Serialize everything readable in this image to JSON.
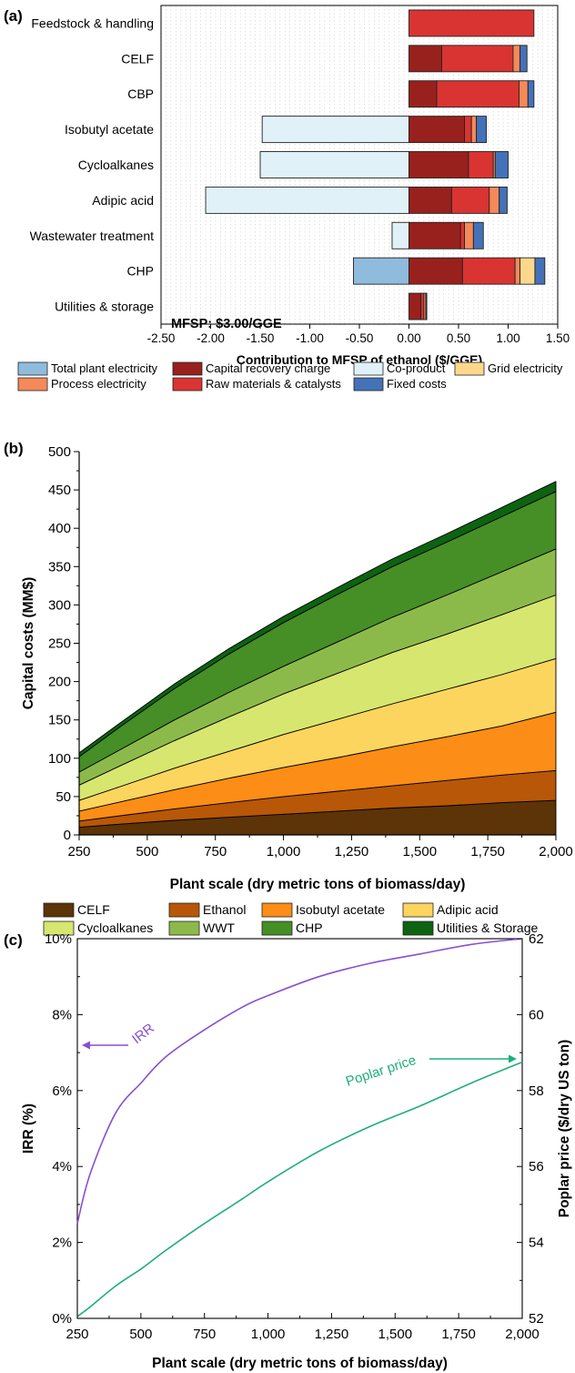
{
  "panel_a": {
    "label": "(a)",
    "annotation": "MFSP: $3.00/GGE",
    "legend": [
      {
        "name": "Total plant electricity",
        "color": "#8fbcdc"
      },
      {
        "name": "Capital recovery charge",
        "color": "#98211d"
      },
      {
        "name": "Co-product",
        "color": "#e0f1f8"
      },
      {
        "name": "Grid electricity",
        "color": "#fdd88c"
      },
      {
        "name": "Process electricity",
        "color": "#f5895a"
      },
      {
        "name": "Raw materials & catalysts",
        "color": "#d93431"
      },
      {
        "name": "Fixed costs",
        "color": "#4472b8"
      }
    ]
  },
  "panel_b": {
    "label": "(b)",
    "legend": [
      {
        "name": "CELF",
        "color": "#5c3407"
      },
      {
        "name": "Ethanol",
        "color": "#b85707"
      },
      {
        "name": "Isobutyl acetate",
        "color": "#fc8d16"
      },
      {
        "name": "Adipic acid",
        "color": "#fcd55e"
      },
      {
        "name": "Cycloalkanes",
        "color": "#d6e66f"
      },
      {
        "name": "WWT",
        "color": "#8cba4a"
      },
      {
        "name": "CHP",
        "color": "#468e26"
      },
      {
        "name": "Utilities & Storage",
        "color": "#0d6312"
      }
    ]
  },
  "panel_c": {
    "label": "(c)",
    "irr_annotation": "IRR",
    "poplar_annotation": "Poplar price"
  },
  "chart_data": [
    {
      "type": "bar",
      "orientation": "horizontal",
      "stacked": true,
      "xlabel": "Contribution to MFSP of ethanol ($/GGE)",
      "xlim": [
        -2.5,
        1.5
      ],
      "xticks": [
        "-2.50",
        "-2.00",
        "-1.50",
        "-1.00",
        "-0.50",
        "0.00",
        "0.50",
        "1.00",
        "1.50"
      ],
      "grid": true,
      "colors": {
        "Total plant electricity": "#8fbcdc",
        "Capital recovery charge": "#98211d",
        "Co-product": "#e0f1f8",
        "Grid electricity": "#fdd88c",
        "Process electricity": "#f5895a",
        "Raw materials & catalysts": "#d93431",
        "Fixed costs": "#4472b8"
      },
      "categories": [
        "Feedstock & handling",
        "CELF",
        "CBP",
        "Isobutyl acetate",
        "Cycloalkanes",
        "Adipic acid",
        "Wastewater treatment",
        "CHP",
        "Utilities & storage"
      ],
      "bars": [
        {
          "category": "Feedstock & handling",
          "segments": [
            {
              "name": "Raw materials & catalysts",
              "value": 1.26
            }
          ]
        },
        {
          "category": "CELF",
          "segments": [
            {
              "name": "Capital recovery charge",
              "value": 0.33
            },
            {
              "name": "Raw materials & catalysts",
              "value": 0.72
            },
            {
              "name": "Process electricity",
              "value": 0.07
            },
            {
              "name": "Fixed costs",
              "value": 0.07
            }
          ]
        },
        {
          "category": "CBP",
          "segments": [
            {
              "name": "Capital recovery charge",
              "value": 0.28
            },
            {
              "name": "Raw materials & catalysts",
              "value": 0.83
            },
            {
              "name": "Process electricity",
              "value": 0.09
            },
            {
              "name": "Fixed costs",
              "value": 0.06
            }
          ]
        },
        {
          "category": "Isobutyl acetate",
          "segments": [
            {
              "name": "Co-product",
              "value": -1.48
            },
            {
              "name": "Capital recovery charge",
              "value": 0.56
            },
            {
              "name": "Raw materials & catalysts",
              "value": 0.07
            },
            {
              "name": "Process electricity",
              "value": 0.05
            },
            {
              "name": "Fixed costs",
              "value": 0.1
            }
          ]
        },
        {
          "category": "Cycloalkanes",
          "segments": [
            {
              "name": "Co-product",
              "value": -1.5
            },
            {
              "name": "Capital recovery charge",
              "value": 0.6
            },
            {
              "name": "Raw materials & catalysts",
              "value": 0.25
            },
            {
              "name": "Process electricity",
              "value": 0.02
            },
            {
              "name": "Fixed costs",
              "value": 0.13
            }
          ]
        },
        {
          "category": "Adipic acid",
          "segments": [
            {
              "name": "Co-product",
              "value": -2.05
            },
            {
              "name": "Capital recovery charge",
              "value": 0.43
            },
            {
              "name": "Raw materials & catalysts",
              "value": 0.38
            },
            {
              "name": "Process electricity",
              "value": 0.1
            },
            {
              "name": "Fixed costs",
              "value": 0.08
            }
          ]
        },
        {
          "category": "Wastewater treatment",
          "segments": [
            {
              "name": "Co-product",
              "value": -0.17
            },
            {
              "name": "Capital recovery charge",
              "value": 0.52
            },
            {
              "name": "Raw materials & catalysts",
              "value": 0.04
            },
            {
              "name": "Process electricity",
              "value": 0.09
            },
            {
              "name": "Fixed costs",
              "value": 0.1
            }
          ]
        },
        {
          "category": "CHP",
          "segments": [
            {
              "name": "Total plant electricity",
              "value": -0.56
            },
            {
              "name": "Capital recovery charge",
              "value": 0.54
            },
            {
              "name": "Raw materials & catalysts",
              "value": 0.53
            },
            {
              "name": "Process electricity",
              "value": 0.05
            },
            {
              "name": "Grid electricity",
              "value": 0.15
            },
            {
              "name": "Fixed costs",
              "value": 0.1
            }
          ]
        },
        {
          "category": "Utilities & storage",
          "segments": [
            {
              "name": "Capital recovery charge",
              "value": 0.12
            },
            {
              "name": "Raw materials & catalysts",
              "value": 0.03
            },
            {
              "name": "Process electricity",
              "value": 0.02
            },
            {
              "name": "Fixed costs",
              "value": 0.01
            }
          ]
        }
      ]
    },
    {
      "type": "area",
      "stacked": true,
      "xlabel": "Plant scale (dry metric tons of biomass/day)",
      "ylabel": "Capital costs (MM$)",
      "xlim": [
        250,
        2000
      ],
      "ylim": [
        0,
        500
      ],
      "xticks": [
        "250",
        "500",
        "750",
        "1,000",
        "1,250",
        "1,500",
        "1,750",
        "2,000"
      ],
      "yticks": [
        "0",
        "50",
        "100",
        "150",
        "200",
        "250",
        "300",
        "350",
        "400",
        "450",
        "500"
      ],
      "x": [
        250,
        400,
        600,
        800,
        1000,
        1200,
        1400,
        1600,
        1800,
        2000
      ],
      "series": [
        {
          "name": "CELF",
          "color": "#5c3407",
          "values": [
            10,
            14,
            19,
            23,
            27,
            31,
            35,
            38,
            42,
            45
          ]
        },
        {
          "name": "Ethanol",
          "color": "#b85707",
          "values": [
            8,
            11,
            15,
            19,
            23,
            26,
            29,
            33,
            36,
            39
          ]
        },
        {
          "name": "Isobutyl acetate",
          "color": "#fc8d16",
          "values": [
            13,
            18,
            25,
            32,
            38,
            44,
            51,
            57,
            64,
            76
          ]
        },
        {
          "name": "Adipic acid",
          "color": "#fcd55e",
          "values": [
            14,
            20,
            28,
            35,
            43,
            50,
            56,
            62,
            67,
            70
          ]
        },
        {
          "name": "Cycloalkanes",
          "color": "#d6e66f",
          "values": [
            20,
            27,
            36,
            45,
            53,
            60,
            67,
            72,
            78,
            83
          ]
        },
        {
          "name": "WWT",
          "color": "#8cba4a",
          "values": [
            17,
            21,
            27,
            32,
            36,
            41,
            46,
            51,
            56,
            60
          ]
        },
        {
          "name": "CHP",
          "color": "#468e26",
          "values": [
            20,
            30,
            41,
            50,
            57,
            62,
            66,
            69,
            72,
            75
          ]
        },
        {
          "name": "Utilities & Storage",
          "color": "#0d6312",
          "values": [
            5,
            5,
            6,
            7,
            8,
            9,
            10,
            11,
            12,
            13
          ]
        }
      ]
    },
    {
      "type": "line",
      "xlabel": "Plant scale (dry metric tons of biomass/day)",
      "ylabel": "IRR (%)",
      "y2label": "Poplar price ($/dry US ton)",
      "xlim": [
        250,
        2000
      ],
      "ylim": [
        0,
        10
      ],
      "y2lim": [
        52,
        62
      ],
      "xticks": [
        "250",
        "500",
        "750",
        "1,000",
        "1,250",
        "1,500",
        "1,750",
        "2,000"
      ],
      "yticks": [
        "0%",
        "2%",
        "4%",
        "6%",
        "8%",
        "10%"
      ],
      "y2ticks": [
        "52",
        "54",
        "56",
        "58",
        "60",
        "62"
      ],
      "x": [
        250,
        300,
        400,
        500,
        600,
        750,
        900,
        1000,
        1200,
        1400,
        1600,
        1800,
        2000
      ],
      "series": [
        {
          "name": "IRR",
          "axis": "left",
          "color": "#8a4fd0",
          "values": [
            2.5,
            3.8,
            5.4,
            6.2,
            6.9,
            7.6,
            8.2,
            8.5,
            9.0,
            9.35,
            9.6,
            9.85,
            10.0
          ]
        },
        {
          "name": "Poplar price",
          "axis": "right",
          "color": "#1fae7a",
          "values": [
            52.05,
            52.3,
            52.85,
            53.3,
            53.8,
            54.5,
            55.15,
            55.6,
            56.4,
            57.05,
            57.6,
            58.2,
            58.75
          ]
        }
      ]
    }
  ]
}
